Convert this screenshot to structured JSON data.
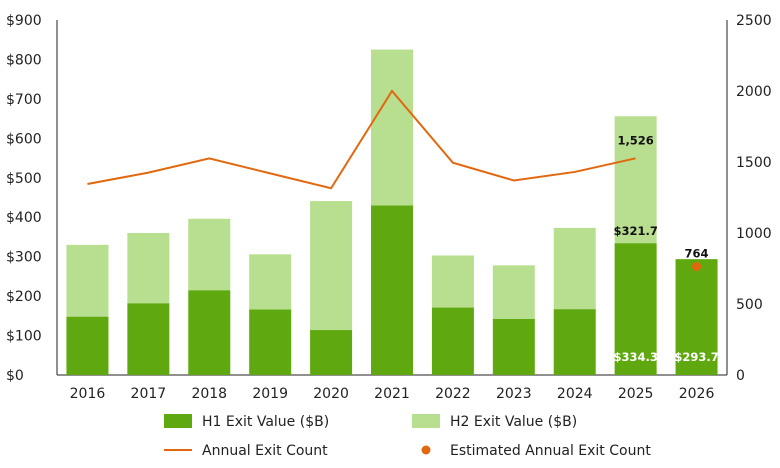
{
  "chart_data": {
    "type": "bar",
    "categories": [
      "2016",
      "2017",
      "2018",
      "2019",
      "2020",
      "2021",
      "2022",
      "2023",
      "2024",
      "2025",
      "2026"
    ],
    "series": [
      {
        "name": "H1 Exit Value ($B)",
        "kind": "bar",
        "axis": "left",
        "color": "#5fa80f",
        "values": [
          148,
          182,
          215,
          166,
          114,
          430,
          171,
          142,
          167,
          334.3,
          293.7
        ]
      },
      {
        "name": "H2 Exit Value ($B)",
        "kind": "bar",
        "axis": "left",
        "color": "#b8de8f",
        "values": [
          182,
          178,
          181,
          140,
          327,
          395,
          132,
          136,
          206,
          321.7,
          null
        ]
      },
      {
        "name": "Annual Exit Count",
        "kind": "line",
        "axis": "right",
        "color": "#e2680f",
        "values": [
          1345,
          1425,
          1525,
          1420,
          1315,
          2000,
          1495,
          1370,
          1430,
          1526,
          null
        ]
      },
      {
        "name": "Estimated Annual Exit Count",
        "kind": "point",
        "axis": "right",
        "color": "#e2680f",
        "values": [
          null,
          null,
          null,
          null,
          null,
          null,
          null,
          null,
          null,
          null,
          764
        ]
      }
    ],
    "y_left": {
      "min": 0,
      "max": 900,
      "ticks": [
        "$0",
        "$100",
        "$200",
        "$300",
        "$400",
        "$500",
        "$600",
        "$700",
        "$800",
        "$900"
      ]
    },
    "y_right": {
      "min": 0,
      "max": 2500,
      "ticks": [
        "0",
        "500",
        "1000",
        "1500",
        "2000",
        "2500"
      ]
    },
    "annotations": {
      "h1_2025": "$334.3",
      "h2_2025": "$321.7",
      "count_2025": "1,526",
      "h1_2026": "$293.7",
      "estimate_2026": "764"
    },
    "legend": {
      "position": "bottom",
      "items": [
        {
          "label": "H1 Exit Value ($B)",
          "marker": "bar",
          "color": "#5fa80f"
        },
        {
          "label": "H2 Exit Value ($B)",
          "marker": "bar",
          "color": "#b8de8f"
        },
        {
          "label": "Annual Exit Count",
          "marker": "line",
          "color": "#e2680f"
        },
        {
          "label": "Estimated Annual Exit Count",
          "marker": "dot",
          "color": "#e2680f"
        }
      ]
    },
    "grid": false
  }
}
